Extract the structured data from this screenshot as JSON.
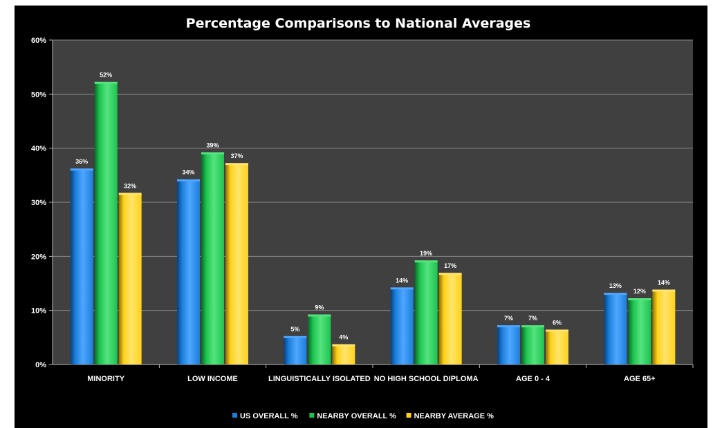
{
  "chart_data": {
    "type": "bar",
    "title": "Percentage Comparisons to National Averages",
    "categories": [
      "MINORITY",
      "LOW INCOME",
      "LINGUISTICALLY ISOLATED",
      "NO HIGH SCHOOL DIPLOMA",
      "AGE 0 - 4",
      "AGE 65+"
    ],
    "series": [
      {
        "name": "US OVERALL %",
        "values": [
          36,
          34,
          5,
          14,
          7,
          13
        ],
        "labels": [
          "36%",
          "34%",
          "5%",
          "14%",
          "7%",
          "13%"
        ]
      },
      {
        "name": "NEARBY OVERALL %",
        "values": [
          52,
          39,
          9,
          19,
          7,
          12
        ],
        "labels": [
          "52%",
          "39%",
          "9%",
          "19%",
          "7%",
          "12%"
        ]
      },
      {
        "name": "NEARBY AVERAGE %",
        "values": [
          31.5,
          37,
          3.5,
          16.7,
          6.2,
          13.6
        ],
        "labels": [
          "32%",
          "37%",
          "4%",
          "17%",
          "6%",
          "14%"
        ]
      }
    ],
    "y_ticks": [
      0,
      10,
      20,
      30,
      40,
      50,
      60
    ],
    "y_tick_labels": [
      "0%",
      "10%",
      "20%",
      "30%",
      "40%",
      "50%",
      "60%"
    ],
    "ylim": [
      0,
      60
    ],
    "grid": true,
    "legend_position": "bottom-center",
    "colors": {
      "series": [
        "#1a7fdb",
        "#1cc44e",
        "#ffd21a"
      ],
      "series_dark": [
        "#0a3f7a",
        "#0a6628",
        "#8a6e00"
      ],
      "series_light": [
        "#4fa6ff",
        "#55e37f",
        "#ffe46b"
      ],
      "plot_bg": "#404040",
      "figure_bg": "#000000",
      "grid": "#8a8a8a",
      "text": "#ffffff"
    }
  }
}
